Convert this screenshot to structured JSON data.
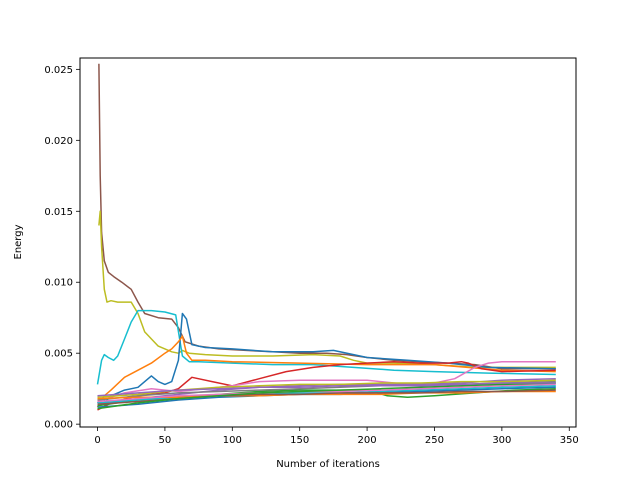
{
  "chart_data": {
    "type": "line",
    "xlabel": "Number of iterations",
    "ylabel": "Energy",
    "xlim": [
      -13,
      355
    ],
    "ylim": [
      -0.0002,
      0.0258
    ],
    "xticks": [
      0,
      50,
      100,
      150,
      200,
      250,
      300,
      350
    ],
    "xtick_labels": [
      "0",
      "50",
      "100",
      "150",
      "200",
      "250",
      "300",
      "350"
    ],
    "yticks": [
      0.0,
      0.005,
      0.01,
      0.015,
      0.02,
      0.025
    ],
    "ytick_labels": [
      "0.000",
      "0.005",
      "0.010",
      "0.015",
      "0.020",
      "0.025"
    ],
    "grid": false,
    "legend": "none",
    "series": [
      {
        "color": "#8c564b",
        "x": [
          1,
          2,
          3,
          5,
          8,
          12,
          18,
          25,
          30,
          35,
          45,
          55,
          60,
          65,
          75,
          90,
          110,
          130,
          150,
          170,
          185,
          200,
          220,
          240,
          260,
          280,
          300,
          320,
          340
        ],
        "y": [
          0.0254,
          0.0175,
          0.0135,
          0.0115,
          0.0107,
          0.0104,
          0.01,
          0.0095,
          0.0086,
          0.0078,
          0.0075,
          0.0074,
          0.0068,
          0.0058,
          0.0055,
          0.0053,
          0.0052,
          0.0051,
          0.005,
          0.005,
          0.0049,
          0.0047,
          0.0045,
          0.0044,
          0.0043,
          0.0042,
          0.0039,
          0.0039,
          0.0039
        ]
      },
      {
        "color": "#bcbd22",
        "x": [
          1,
          2,
          3,
          5,
          7,
          10,
          15,
          20,
          25,
          30,
          35,
          45,
          55,
          60,
          63,
          68,
          80,
          100,
          130,
          160,
          180,
          190,
          200,
          220,
          250,
          280,
          300,
          340
        ],
        "y": [
          0.014,
          0.015,
          0.0125,
          0.0095,
          0.0086,
          0.0087,
          0.0086,
          0.0086,
          0.0086,
          0.0078,
          0.0065,
          0.0055,
          0.0051,
          0.005,
          0.0052,
          0.005,
          0.0049,
          0.0048,
          0.0048,
          0.0049,
          0.0048,
          0.0045,
          0.0043,
          0.0043,
          0.0042,
          0.004,
          0.004,
          0.004
        ]
      },
      {
        "color": "#17becf",
        "x": [
          0,
          3,
          5,
          8,
          12,
          15,
          20,
          25,
          30,
          40,
          50,
          58,
          63,
          68,
          75,
          100,
          130,
          160,
          190,
          220,
          250,
          290,
          340
        ],
        "y": [
          0.0028,
          0.0045,
          0.0049,
          0.0047,
          0.0045,
          0.0048,
          0.006,
          0.0072,
          0.008,
          0.008,
          0.0079,
          0.0077,
          0.0048,
          0.0044,
          0.0044,
          0.0043,
          0.0042,
          0.0042,
          0.004,
          0.0038,
          0.0037,
          0.0036,
          0.0035
        ]
      },
      {
        "color": "#1f77b4",
        "x": [
          0,
          3,
          6,
          10,
          20,
          30,
          40,
          45,
          50,
          55,
          60,
          63,
          66,
          70,
          80,
          100,
          130,
          160,
          175,
          200,
          230,
          260,
          290,
          340
        ],
        "y": [
          0.0015,
          0.0018,
          0.0016,
          0.002,
          0.0024,
          0.0026,
          0.0034,
          0.003,
          0.0028,
          0.003,
          0.0045,
          0.0078,
          0.0074,
          0.0056,
          0.0054,
          0.0053,
          0.0051,
          0.0051,
          0.0052,
          0.0047,
          0.0045,
          0.0043,
          0.004,
          0.0039
        ]
      },
      {
        "color": "#ff7f0e",
        "x": [
          0,
          5,
          10,
          20,
          30,
          40,
          50,
          55,
          60,
          63,
          66,
          70,
          80,
          100,
          150,
          200,
          250,
          300,
          340
        ],
        "y": [
          0.0012,
          0.002,
          0.0024,
          0.0033,
          0.0038,
          0.0043,
          0.005,
          0.0053,
          0.0058,
          0.0062,
          0.005,
          0.0045,
          0.0045,
          0.0044,
          0.0043,
          0.0042,
          0.0042,
          0.0038,
          0.0037
        ]
      },
      {
        "color": "#d62728",
        "x": [
          0,
          10,
          30,
          50,
          60,
          70,
          85,
          100,
          120,
          140,
          160,
          180,
          200,
          220,
          240,
          260,
          270,
          275,
          285,
          300,
          340
        ],
        "y": [
          0.001,
          0.0015,
          0.002,
          0.0022,
          0.0025,
          0.0033,
          0.003,
          0.0027,
          0.0032,
          0.0037,
          0.004,
          0.0042,
          0.0043,
          0.0044,
          0.0043,
          0.0043,
          0.0044,
          0.0043,
          0.0039,
          0.0037,
          0.0038
        ]
      },
      {
        "color": "#e377c2",
        "x": [
          0,
          20,
          40,
          60,
          80,
          100,
          120,
          150,
          180,
          200,
          230,
          250,
          265,
          280,
          290,
          300,
          340
        ],
        "y": [
          0.0016,
          0.0022,
          0.0025,
          0.0023,
          0.0025,
          0.0027,
          0.003,
          0.0031,
          0.0031,
          0.0031,
          0.0028,
          0.0029,
          0.0032,
          0.004,
          0.0043,
          0.0044,
          0.0044
        ]
      },
      {
        "color": "#9467bd",
        "x": [
          0,
          30,
          60,
          90,
          120,
          150,
          180,
          210,
          240,
          270,
          300,
          340
        ],
        "y": [
          0.0014,
          0.0018,
          0.0021,
          0.0024,
          0.0026,
          0.0027,
          0.0028,
          0.0028,
          0.0028,
          0.0029,
          0.0031,
          0.0032
        ]
      },
      {
        "color": "#2ca02c",
        "x": [
          0,
          30,
          60,
          90,
          120,
          150,
          180,
          200,
          215,
          230,
          250,
          280,
          310,
          340
        ],
        "y": [
          0.0013,
          0.0017,
          0.0019,
          0.0021,
          0.0023,
          0.0024,
          0.0024,
          0.0024,
          0.002,
          0.0019,
          0.002,
          0.0022,
          0.0024,
          0.0025
        ]
      },
      {
        "color": "#7f7f7f",
        "x": [
          0,
          30,
          60,
          90,
          120,
          150,
          180,
          210,
          240,
          270,
          300,
          340
        ],
        "y": [
          0.0017,
          0.002,
          0.0022,
          0.0023,
          0.0024,
          0.0025,
          0.0026,
          0.0027,
          0.0027,
          0.0028,
          0.0029,
          0.003
        ]
      },
      {
        "color": "#bcbd22",
        "x": [
          0,
          30,
          60,
          90,
          120,
          150,
          180,
          210,
          240,
          270,
          300,
          340
        ],
        "y": [
          0.0019,
          0.0021,
          0.0024,
          0.0026,
          0.0027,
          0.0028,
          0.0028,
          0.0029,
          0.0029,
          0.003,
          0.003,
          0.0031
        ]
      },
      {
        "color": "#17becf",
        "x": [
          0,
          30,
          60,
          90,
          120,
          150,
          180,
          210,
          240,
          270,
          300,
          340
        ],
        "y": [
          0.0015,
          0.0017,
          0.0019,
          0.002,
          0.0021,
          0.0022,
          0.0022,
          0.0023,
          0.0024,
          0.0025,
          0.0026,
          0.0027
        ]
      },
      {
        "color": "#1f77b4",
        "x": [
          0,
          30,
          60,
          90,
          120,
          150,
          180,
          210,
          240,
          270,
          300,
          340
        ],
        "y": [
          0.0012,
          0.0014,
          0.0017,
          0.0019,
          0.002,
          0.0021,
          0.0021,
          0.0022,
          0.0023,
          0.0024,
          0.0025,
          0.0026
        ]
      },
      {
        "color": "#ff7f0e",
        "x": [
          0,
          30,
          60,
          90,
          120,
          150,
          180,
          210,
          240,
          270,
          300,
          340
        ],
        "y": [
          0.0018,
          0.0019,
          0.0019,
          0.002,
          0.002,
          0.0021,
          0.0021,
          0.0021,
          0.0022,
          0.0022,
          0.0023,
          0.0023
        ]
      },
      {
        "color": "#8c564b",
        "x": [
          0,
          30,
          60,
          90,
          120,
          150,
          180,
          210,
          240,
          270,
          300,
          340
        ],
        "y": [
          0.0014,
          0.0016,
          0.0018,
          0.002,
          0.0021,
          0.0021,
          0.0022,
          0.0022,
          0.0022,
          0.0023,
          0.0023,
          0.0024
        ]
      },
      {
        "color": "#e377c2",
        "x": [
          0,
          30,
          60,
          90,
          120,
          150,
          180,
          210,
          240,
          270,
          300,
          340
        ],
        "y": [
          0.0016,
          0.0018,
          0.002,
          0.0021,
          0.0022,
          0.0023,
          0.0023,
          0.0024,
          0.0025,
          0.0026,
          0.0027,
          0.0028
        ]
      },
      {
        "color": "#2ca02c",
        "x": [
          0,
          30,
          60,
          90,
          120,
          150,
          180,
          210,
          240,
          270,
          300,
          340
        ],
        "y": [
          0.0011,
          0.0015,
          0.0018,
          0.002,
          0.0022,
          0.0023,
          0.0024,
          0.0025,
          0.0026,
          0.0027,
          0.0028,
          0.0029
        ]
      },
      {
        "color": "#9467bd",
        "x": [
          0,
          30,
          60,
          90,
          120,
          150,
          180,
          210,
          240,
          270,
          300,
          340
        ],
        "y": [
          0.002,
          0.0022,
          0.0024,
          0.0025,
          0.0026,
          0.0026,
          0.0027,
          0.0027,
          0.0027,
          0.0028,
          0.0029,
          0.0029
        ]
      }
    ]
  }
}
